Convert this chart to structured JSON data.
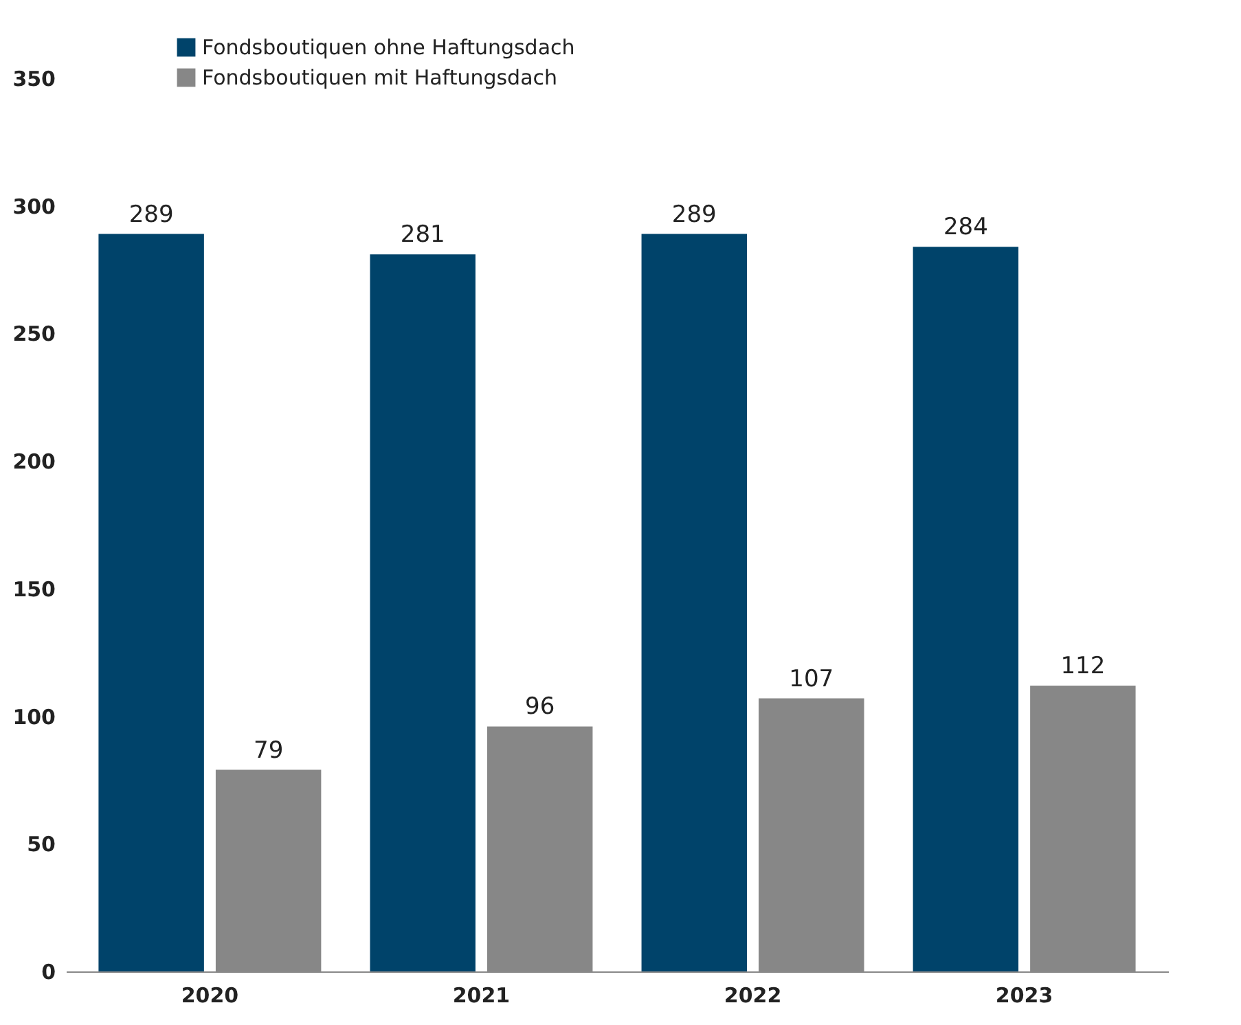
{
  "chart_data": {
    "type": "bar",
    "categories": [
      "2020",
      "2021",
      "2022",
      "2023"
    ],
    "series": [
      {
        "name": "Fondsboutiquen ohne Haftungsdach",
        "color": "#00436a",
        "values": [
          289,
          281,
          289,
          284
        ]
      },
      {
        "name": "Fondsboutiquen mit Haftungsdach",
        "color": "#878787",
        "values": [
          79,
          96,
          107,
          112
        ]
      }
    ],
    "ylim": [
      0,
      350
    ],
    "yticks": [
      0,
      50,
      100,
      150,
      200,
      250,
      300,
      350
    ],
    "data_labels": true,
    "grid": false,
    "legend": "top left"
  }
}
